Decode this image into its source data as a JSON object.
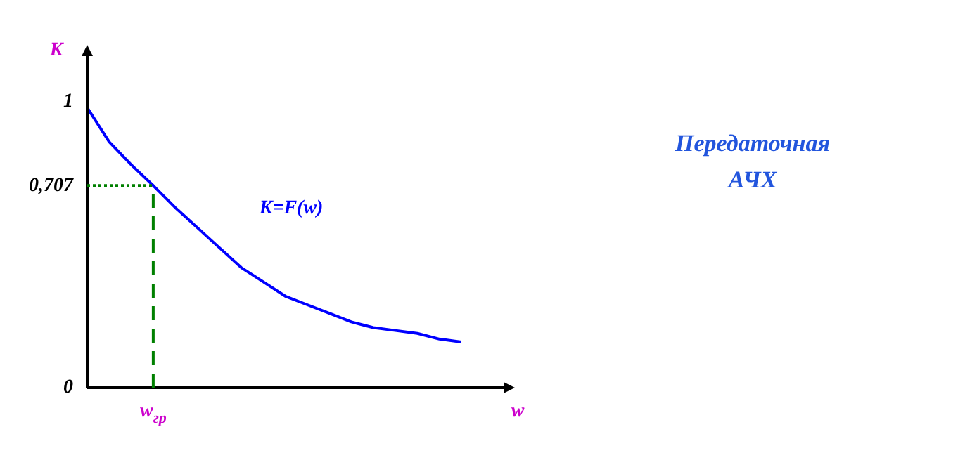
{
  "chart_data": {
    "type": "line",
    "title": "Передаточная АЧХ",
    "xlabel": "w",
    "ylabel": "K",
    "annotations": [
      "K=F(w)"
    ],
    "categories": [
      null,
      null,
      null,
      "w$_{гр}$",
      null,
      null,
      null,
      null,
      null,
      null,
      null,
      null,
      null,
      null,
      null,
      null,
      null,
      null
    ],
    "series": [
      {
        "color": "#0000ff",
        "values": [
          0.98,
          0.86,
          0.78,
          0.707,
          0.63,
          0.56,
          0.49,
          0.42,
          0.37,
          0.32,
          0.29,
          0.26,
          0.23,
          0.21,
          0.2,
          0.19,
          0.17,
          0.16
        ]
      }
    ],
    "ylim": [
      0,
      1.16
    ],
    "yticks": [
      0,
      {
        "value": 0.707,
        "label": "0,707"
      },
      1
    ],
    "ref_lines": [
      {
        "axis": "y",
        "value": 0.707,
        "color": "#008000",
        "line_style": "dotted"
      },
      {
        "axis": "x",
        "value": "w$_{гр}$",
        "color": "#008000",
        "line_style": "dashed"
      }
    ],
    "grid": false,
    "legend": false,
    "marker": "none",
    "line_style": "solid"
  }
}
